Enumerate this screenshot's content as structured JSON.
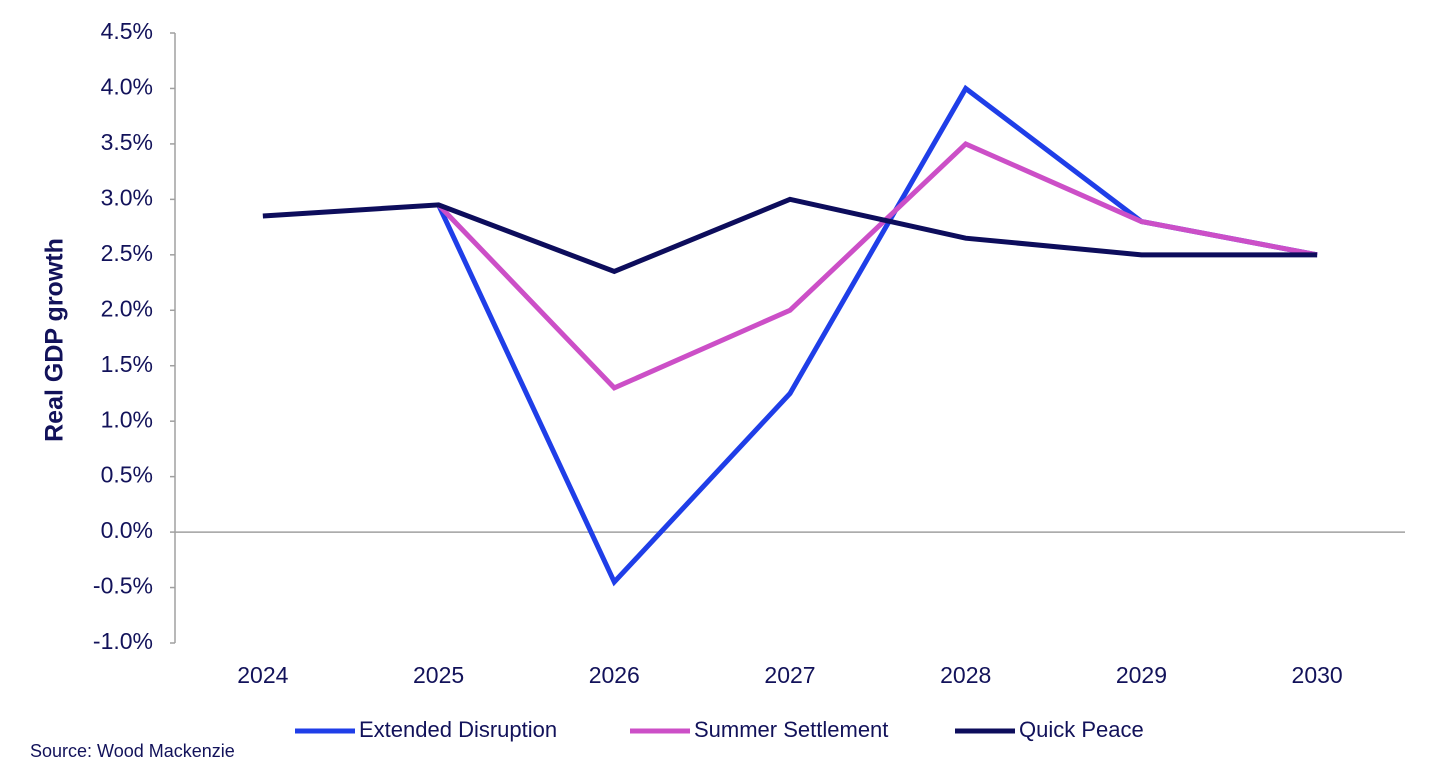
{
  "chart_data": {
    "type": "line",
    "y_label": "Real GDP growth",
    "source": "Source: Wood Mackenzie",
    "categories": [
      "2024",
      "2025",
      "2026",
      "2027",
      "2028",
      "2029",
      "2030"
    ],
    "series": [
      {
        "name": "Extended Disruption",
        "color": "#1f3ee8",
        "values": [
          null,
          2.95,
          -0.45,
          1.25,
          4.0,
          2.8,
          2.5
        ]
      },
      {
        "name": "Summer Settlement",
        "color": "#cc4fc7",
        "values": [
          null,
          2.95,
          1.3,
          2.0,
          3.5,
          2.8,
          2.5
        ]
      },
      {
        "name": "Quick Peace",
        "color": "#0d0d5c",
        "values": [
          2.85,
          2.95,
          2.35,
          3.0,
          2.65,
          2.5,
          2.5
        ]
      }
    ],
    "ylim": [
      -1.0,
      4.5
    ],
    "yticks": [
      {
        "value": -1.0,
        "label": "-1.0%"
      },
      {
        "value": -0.5,
        "label": "-0.5%"
      },
      {
        "value": 0.0,
        "label": "0.0%"
      },
      {
        "value": 0.5,
        "label": "0.5%"
      },
      {
        "value": 1.0,
        "label": "1.0%"
      },
      {
        "value": 1.5,
        "label": "1.5%"
      },
      {
        "value": 2.0,
        "label": "2.0%"
      },
      {
        "value": 2.5,
        "label": "2.5%"
      },
      {
        "value": 3.0,
        "label": "3.0%"
      },
      {
        "value": 3.5,
        "label": "3.5%"
      },
      {
        "value": 4.0,
        "label": "4.0%"
      },
      {
        "value": 4.5,
        "label": "4.5%"
      }
    ],
    "grid": false,
    "legend": "bottom"
  }
}
